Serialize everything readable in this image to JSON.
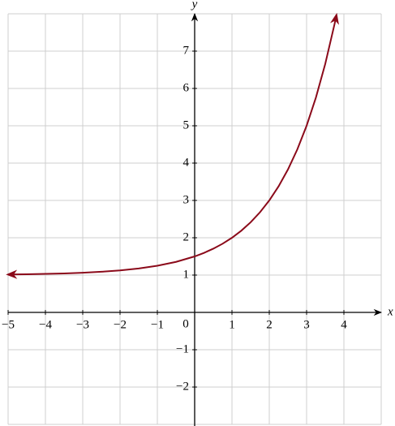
{
  "chart_data": {
    "type": "line",
    "x_label": "x",
    "y_label": "y",
    "origin_label": "0",
    "xlim": [
      -5,
      5
    ],
    "ylim": [
      -3,
      8
    ],
    "xticks": [
      {
        "value": -5,
        "label": "−5"
      },
      {
        "value": -4,
        "label": "−4"
      },
      {
        "value": -3,
        "label": "−3"
      },
      {
        "value": -2,
        "label": "−2"
      },
      {
        "value": -1,
        "label": "−1"
      },
      1,
      2,
      3,
      4
    ],
    "yticks": [
      {
        "value": -2,
        "label": "−2"
      },
      {
        "value": -1,
        "label": "−1"
      },
      1,
      2,
      3,
      4,
      5,
      6,
      7
    ],
    "xgrid": [
      -5,
      -4,
      -3,
      -2,
      -1,
      0,
      1,
      2,
      3,
      4,
      5
    ],
    "ygrid": [
      -3,
      -2,
      -1,
      0,
      1,
      2,
      3,
      4,
      5,
      6,
      7,
      8
    ],
    "grid": true,
    "series": [
      {
        "color": "#8b0a1a",
        "x": [
          -5,
          -4.5,
          -4,
          -3.5,
          -3,
          -2.5,
          -2,
          -1.5,
          -1,
          -0.5,
          0,
          0.25,
          0.5,
          0.75,
          1,
          1.25,
          1.5,
          1.75,
          2,
          2.25,
          2.5,
          2.75,
          3,
          3.25,
          3.5,
          3.75,
          3.8
        ],
        "values": [
          1.0156,
          1.0221,
          1.0313,
          1.0442,
          1.0625,
          1.0884,
          1.125,
          1.1768,
          1.25,
          1.3536,
          1.5,
          1.5946,
          1.7071,
          1.8409,
          2,
          2.1892,
          2.4142,
          2.6818,
          3,
          3.3784,
          3.8284,
          4.3636,
          5,
          5.7568,
          6.6569,
          7.7272,
          7.9644
        ]
      }
    ]
  }
}
